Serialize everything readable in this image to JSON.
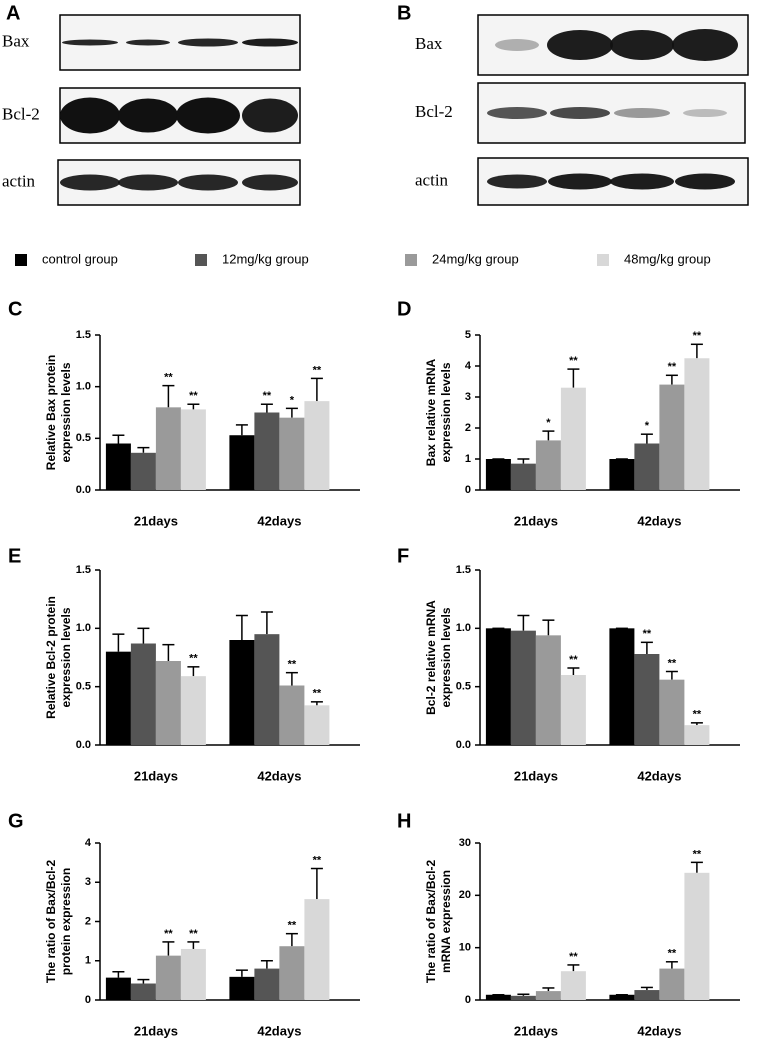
{
  "panel_labels": [
    "A",
    "B",
    "C",
    "D",
    "E",
    "F",
    "G",
    "H"
  ],
  "blots": [
    {
      "rows": [
        "Bax",
        "Bcl-2",
        "actin"
      ]
    },
    {
      "rows": [
        "Bax",
        "Bcl-2",
        "actin"
      ]
    }
  ],
  "legend": [
    {
      "name": "control group",
      "color": "#000000"
    },
    {
      "name": "12mg/kg group",
      "color": "#555555"
    },
    {
      "name": "24mg/kg group",
      "color": "#9a9a9a"
    },
    {
      "name": "48mg/kg group",
      "color": "#d8d8d8"
    }
  ],
  "chart_data": [
    {
      "type": "bar",
      "y_label": [
        "Relative Bax protein",
        "expression levels"
      ],
      "categories": [
        "21days",
        "42days"
      ],
      "ylim": [
        0,
        1.5
      ],
      "yticks": [
        {
          "value": 0,
          "label": "0.0"
        },
        {
          "value": 0.5,
          "label": "0.5"
        },
        {
          "value": 1,
          "label": "1.0"
        },
        {
          "value": 1.5,
          "label": "1.5"
        }
      ],
      "series": [
        {
          "values": [
            0.45,
            0.53
          ],
          "errors": [
            0.08,
            0.1
          ],
          "annotations": [
            null,
            null
          ]
        },
        {
          "values": [
            0.36,
            0.75
          ],
          "errors": [
            0.05,
            0.08
          ],
          "annotations": [
            null,
            "**"
          ]
        },
        {
          "values": [
            0.8,
            0.7
          ],
          "errors": [
            0.21,
            0.09
          ],
          "annotations": [
            "**",
            "*"
          ]
        },
        {
          "values": [
            0.78,
            0.86
          ],
          "errors": [
            0.05,
            0.22
          ],
          "annotations": [
            "**",
            "**"
          ]
        }
      ]
    },
    {
      "type": "bar",
      "y_label": [
        "Bax relative mRNA",
        "expression levels"
      ],
      "categories": [
        "21days",
        "42days"
      ],
      "ylim": [
        0,
        5
      ],
      "yticks": [
        0,
        1,
        2,
        3,
        4,
        5
      ],
      "series": [
        {
          "values": [
            1,
            1
          ],
          "errors": [
            0,
            0
          ],
          "annotations": [
            null,
            null
          ]
        },
        {
          "values": [
            0.85,
            1.5
          ],
          "errors": [
            0.15,
            0.3
          ],
          "annotations": [
            null,
            "*"
          ]
        },
        {
          "values": [
            1.6,
            3.4
          ],
          "errors": [
            0.3,
            0.3
          ],
          "annotations": [
            "*",
            "**"
          ]
        },
        {
          "values": [
            3.3,
            4.25
          ],
          "errors": [
            0.6,
            0.45
          ],
          "annotations": [
            "**",
            "**"
          ]
        }
      ]
    },
    {
      "type": "bar",
      "y_label": [
        "Relative Bcl-2 protein",
        "expression levels"
      ],
      "categories": [
        "21days",
        "42days"
      ],
      "ylim": [
        0,
        1.5
      ],
      "yticks": [
        {
          "value": 0,
          "label": "0.0"
        },
        {
          "value": 0.5,
          "label": "0.5"
        },
        {
          "value": 1,
          "label": "1.0"
        },
        {
          "value": 1.5,
          "label": "1.5"
        }
      ],
      "series": [
        {
          "values": [
            0.8,
            0.9
          ],
          "errors": [
            0.15,
            0.21
          ],
          "annotations": [
            null,
            null
          ]
        },
        {
          "values": [
            0.87,
            0.95
          ],
          "errors": [
            0.13,
            0.19
          ],
          "annotations": [
            null,
            null
          ]
        },
        {
          "values": [
            0.72,
            0.51
          ],
          "errors": [
            0.14,
            0.11
          ],
          "annotations": [
            null,
            "**"
          ]
        },
        {
          "values": [
            0.59,
            0.34
          ],
          "errors": [
            0.08,
            0.03
          ],
          "annotations": [
            "**",
            "**"
          ]
        }
      ]
    },
    {
      "type": "bar",
      "y_label": [
        "Bcl-2 relative mRNA",
        "expression levels"
      ],
      "categories": [
        "21days",
        "42days"
      ],
      "ylim": [
        0,
        1.5
      ],
      "yticks": [
        {
          "value": 0,
          "label": "0.0"
        },
        {
          "value": 0.5,
          "label": "0.5"
        },
        {
          "value": 1,
          "label": "1.0"
        },
        {
          "value": 1.5,
          "label": "1.5"
        }
      ],
      "series": [
        {
          "values": [
            1,
            1
          ],
          "errors": [
            0,
            0
          ],
          "annotations": [
            null,
            null
          ]
        },
        {
          "values": [
            0.98,
            0.78
          ],
          "errors": [
            0.13,
            0.1
          ],
          "annotations": [
            null,
            "**"
          ]
        },
        {
          "values": [
            0.94,
            0.56
          ],
          "errors": [
            0.13,
            0.07
          ],
          "annotations": [
            null,
            "**"
          ]
        },
        {
          "values": [
            0.6,
            0.17
          ],
          "errors": [
            0.06,
            0.02
          ],
          "annotations": [
            "**",
            "**"
          ]
        }
      ]
    },
    {
      "type": "bar",
      "y_label": [
        "The ratio of Bax/Bcl-2",
        "protein expression"
      ],
      "categories": [
        "21days",
        "42days"
      ],
      "ylim": [
        0,
        4
      ],
      "yticks": [
        0,
        1,
        2,
        3,
        4
      ],
      "series": [
        {
          "values": [
            0.57,
            0.59
          ],
          "errors": [
            0.15,
            0.17
          ],
          "annotations": [
            null,
            null
          ]
        },
        {
          "values": [
            0.42,
            0.8
          ],
          "errors": [
            0.1,
            0.2
          ],
          "annotations": [
            null,
            null
          ]
        },
        {
          "values": [
            1.13,
            1.37
          ],
          "errors": [
            0.35,
            0.32
          ],
          "annotations": [
            "**",
            "**"
          ]
        },
        {
          "values": [
            1.3,
            2.57
          ],
          "errors": [
            0.18,
            0.78
          ],
          "annotations": [
            "**",
            "**"
          ]
        }
      ]
    },
    {
      "type": "bar",
      "y_label": [
        "The ratio of Bax/Bcl-2",
        "mRNA expression"
      ],
      "categories": [
        "21days",
        "42days"
      ],
      "ylim": [
        0,
        30
      ],
      "yticks": [
        0,
        10,
        20,
        30
      ],
      "series": [
        {
          "values": [
            1,
            1
          ],
          "errors": [
            0,
            0
          ],
          "annotations": [
            null,
            null
          ]
        },
        {
          "values": [
            0.8,
            1.9
          ],
          "errors": [
            0.3,
            0.5
          ],
          "annotations": [
            null,
            null
          ]
        },
        {
          "values": [
            1.7,
            6
          ],
          "errors": [
            0.6,
            1.3
          ],
          "annotations": [
            null,
            "**"
          ]
        },
        {
          "values": [
            5.5,
            24.3
          ],
          "errors": [
            1.2,
            2
          ],
          "annotations": [
            "**",
            "**"
          ]
        }
      ]
    }
  ]
}
